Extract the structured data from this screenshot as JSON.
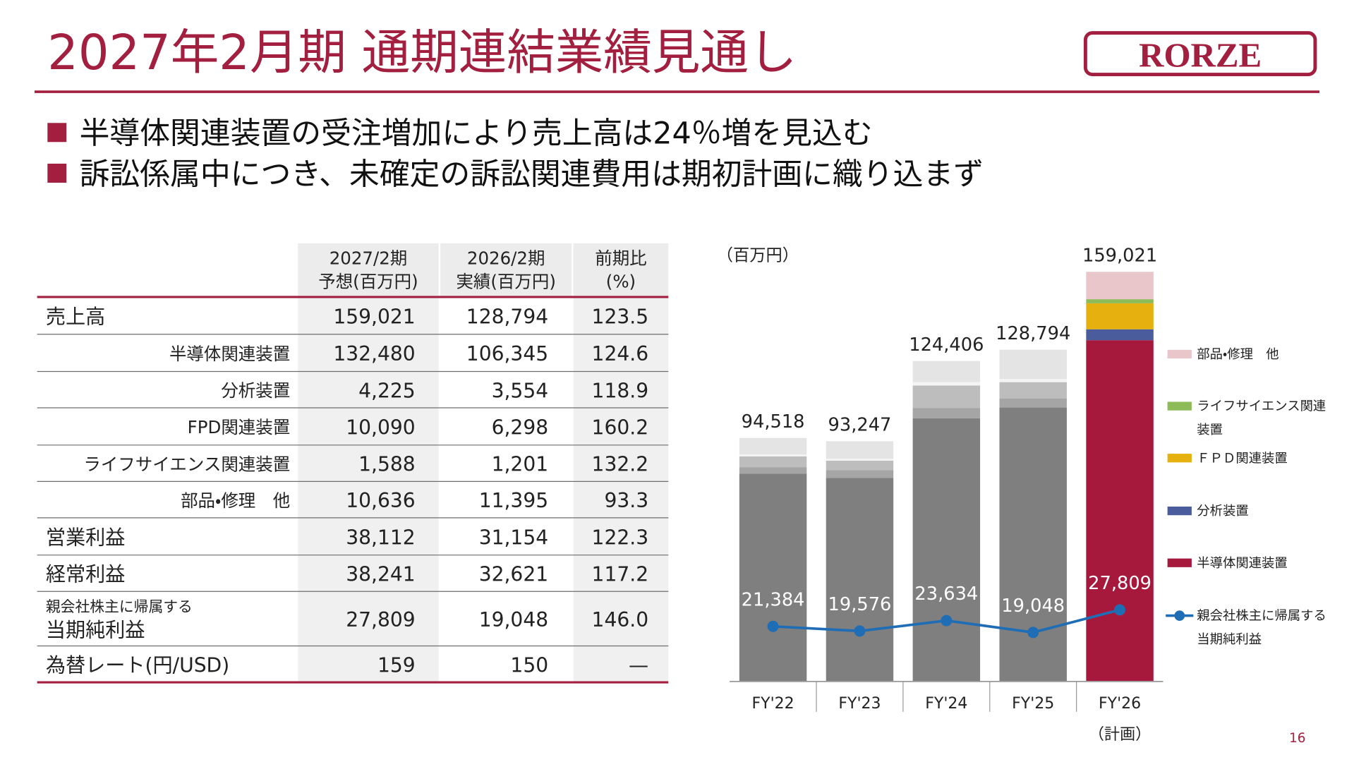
{
  "header": {
    "title": "2027年2月期 通期連結業績見通し",
    "logo": "RORZE",
    "page_number": "16"
  },
  "bullets": [
    "半導体関連装置の受注増加により売上高は24％増を見込む",
    "訴訟係属中につき、未確定の訴訟関連費用は期初計画に織り込まず"
  ],
  "table": {
    "columns": [
      [
        "2027/2期",
        "予想(百万円)"
      ],
      [
        "2026/2期",
        "実績(百万円)"
      ],
      [
        "前期比",
        "(%)"
      ]
    ],
    "rows": [
      [
        "売上高",
        "159,021",
        "128,794",
        "123.5"
      ],
      [
        "半導体関連装置",
        "132,480",
        "106,345",
        "124.6"
      ],
      [
        "分析装置",
        "4,225",
        "3,554",
        "118.9"
      ],
      [
        "FPD関連装置",
        "10,090",
        "6,298",
        "160.2"
      ],
      [
        "ライフサイエンス関連装置",
        "1,588",
        "1,201",
        "132.2"
      ],
      [
        "部品・修理　他",
        "10,636",
        "11,395",
        "93.3"
      ],
      [
        "営業利益",
        "38,112",
        "31,154",
        "122.3"
      ],
      [
        "経常利益",
        "38,241",
        "32,621",
        "117.2"
      ],
      [
        [
          "親会社株主に帰属する",
          "当期純利益"
        ],
        "27,809",
        "19,048",
        "146.0"
      ],
      [
        "為替レート(円/USD)",
        "159",
        "150",
        "—"
      ]
    ]
  },
  "chart_data": {
    "type": "bar",
    "stacked": true,
    "unit_label": "（百万円）",
    "categories": [
      "FY'22",
      "FY'23",
      "FY'24",
      "FY'25",
      "FY'26"
    ],
    "category_notes": [
      null,
      null,
      null,
      null,
      "（計画）"
    ],
    "ylim": [
      0,
      160000
    ],
    "series": [
      {
        "name": "半導体関連装置",
        "color": "#a6193c",
        "colors": [
          "#7f7f7f",
          "#7f7f7f",
          "#7f7f7f",
          "#7f7f7f",
          "#a6193c"
        ],
        "values": [
          80700,
          79000,
          102200,
          106345,
          132480
        ]
      },
      {
        "name": "分析装置",
        "color": "#4a5c9c",
        "colors": [
          "#a5a5a5",
          "#a5a5a5",
          "#a5a5a5",
          "#a5a5a5",
          "#4a5c9c"
        ],
        "values": [
          2500,
          3000,
          4000,
          3554,
          4225
        ]
      },
      {
        "name": "ＦＰＤ関連装置",
        "color": "#e6b00e",
        "colors": [
          "#bdbdbd",
          "#bdbdbd",
          "#bdbdbd",
          "#bdbdbd",
          "#e6b00e"
        ],
        "values": [
          4200,
          3700,
          8700,
          6298,
          10090
        ]
      },
      {
        "name": "ライフサイエンス関連装置",
        "color": "#8cbb58",
        "colors": [
          "#f4f4f4",
          "#f4f4f4",
          "#f4f4f4",
          "#f4f4f4",
          "#8cbb58"
        ],
        "values": [
          700,
          800,
          1300,
          1201,
          1588
        ]
      },
      {
        "name": "部品・修理　他",
        "color": "#e9c6c9",
        "colors": [
          "#e4e4e4",
          "#e4e4e4",
          "#e4e4e4",
          "#e4e4e4",
          "#e9c6c9"
        ],
        "values": [
          6400,
          6750,
          8200,
          11395,
          10636
        ]
      },
      {
        "name": "親会社株主に帰属する当期純利益",
        "type": "line",
        "color": "#1f6db5",
        "values": [
          21384,
          19576,
          23634,
          19048,
          27809
        ],
        "value_labels": [
          "21,384",
          "19,576",
          "23,634",
          "19,048",
          "27,809"
        ]
      }
    ],
    "totals": [
      94518,
      93247,
      124406,
      128794,
      159021
    ],
    "total_labels": [
      "94,518",
      "93,247",
      "124,406",
      "128,794",
      "159,021"
    ]
  }
}
